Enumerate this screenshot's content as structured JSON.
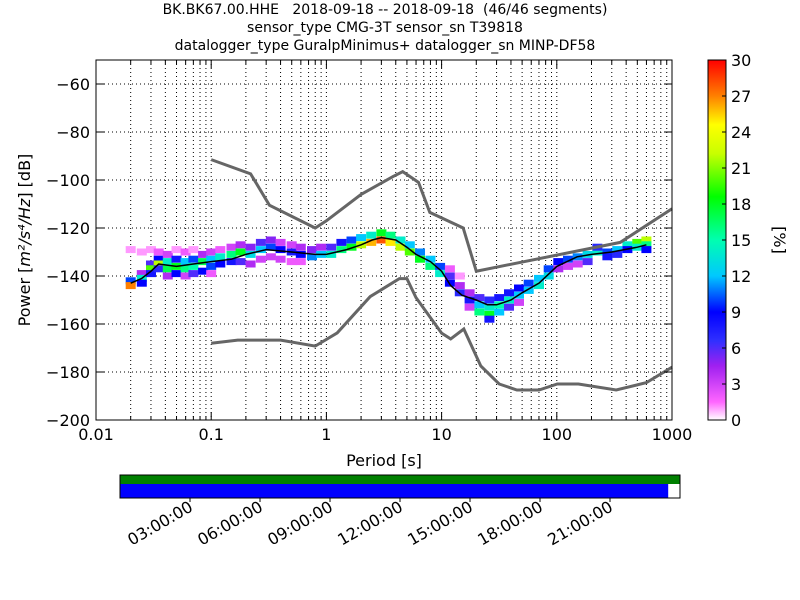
{
  "title_lines": [
    "BK.BK67.00.HHE   2018-09-18 -- 2018-09-18  (46/46 segments)",
    "sensor_type CMG-3T sensor_sn T39818",
    "datalogger_type GuralpMinimus+ datalogger_sn MINP-DF58"
  ],
  "chart_data": {
    "type": "heatmap",
    "title": "BK.BK67.00.HHE   2018-09-18 -- 2018-09-18  (46/46 segments)",
    "xlabel": "Period [s]",
    "ylabel_prefix": "Power [",
    "ylabel_unit": "m²/s⁴/Hz",
    "ylabel_suffix": "] [dB]",
    "x_scale": "log",
    "xlim": [
      0.01,
      1000
    ],
    "ylim": [
      -200,
      -50
    ],
    "x_ticks": [
      0.01,
      0.1,
      1,
      10,
      100,
      1000
    ],
    "x_tick_labels": [
      "0.01",
      "0.1",
      "1",
      "10",
      "100",
      "1000"
    ],
    "y_ticks": [
      -200,
      -180,
      -160,
      -140,
      -120,
      -100,
      -80,
      -60
    ],
    "y_tick_labels": [
      "−200",
      "−180",
      "−160",
      "−140",
      "−120",
      "−100",
      "−80",
      "−60"
    ],
    "grid": true,
    "colorbar": {
      "label": "[%]",
      "range": [
        0,
        30
      ],
      "ticks": [
        0,
        3,
        6,
        9,
        12,
        15,
        18,
        21,
        24,
        27,
        30
      ],
      "tick_labels": [
        "0",
        "3",
        "6",
        "9",
        "12",
        "15",
        "18",
        "21",
        "24",
        "27",
        "30"
      ]
    },
    "mode_line": {
      "period": [
        0.02,
        0.025,
        0.03,
        0.035,
        0.05,
        0.07,
        0.1,
        0.15,
        0.2,
        0.3,
        0.5,
        0.8,
        1,
        1.5,
        2,
        2.5,
        3,
        4,
        5,
        6,
        8,
        10,
        12,
        15,
        20,
        25,
        30,
        40,
        50,
        70,
        100,
        150,
        200,
        300,
        500,
        600
      ],
      "power": [
        -143,
        -141,
        -138,
        -135,
        -136,
        -135,
        -134,
        -133,
        -131,
        -129,
        -130,
        -131,
        -131,
        -129,
        -127,
        -125,
        -124,
        -125,
        -128,
        -131,
        -134,
        -138,
        -144,
        -148,
        -150,
        -152,
        -152,
        -150,
        -147,
        -143,
        -136,
        -132,
        -131,
        -130,
        -128,
        -127
      ]
    },
    "noise_model_high": {
      "period": [
        0.1,
        0.22,
        0.32,
        0.8,
        1,
        2,
        3.8,
        4.6,
        6.3,
        7.9,
        15.4,
        20,
        354.8,
        1000
      ],
      "power": [
        -91.5,
        -97.4,
        -110.5,
        -120,
        -117,
        -106,
        -98.5,
        -96.5,
        -101,
        -113.5,
        -120,
        -138,
        -126,
        -112
      ]
    },
    "noise_model_low": {
      "period": [
        0.1,
        0.17,
        0.4,
        0.8,
        1.24,
        2.4,
        4.3,
        5,
        6,
        10,
        12,
        15.6,
        21.9,
        31.6,
        45,
        70,
        101,
        154,
        328,
        600,
        1000
      ],
      "power": [
        -168,
        -166.7,
        -166.7,
        -169.2,
        -163.7,
        -148.6,
        -141.1,
        -141.1,
        -149,
        -163.8,
        -166.2,
        -162.1,
        -177.5,
        -185,
        -187.5,
        -187.5,
        -185,
        -185,
        -187.5,
        -184.4,
        -178
      ]
    },
    "pdf_cells": [
      {
        "p": 0.02,
        "y": -129,
        "pct": 1
      },
      {
        "p": 0.02,
        "y": -142,
        "pct": 10
      },
      {
        "p": 0.02,
        "y": -144,
        "pct": 27
      },
      {
        "p": 0.025,
        "y": -130,
        "pct": 1
      },
      {
        "p": 0.025,
        "y": -139,
        "pct": 4
      },
      {
        "p": 0.025,
        "y": -141,
        "pct": 14
      },
      {
        "p": 0.025,
        "y": -143,
        "pct": 9
      },
      {
        "p": 0.03,
        "y": -129,
        "pct": 1
      },
      {
        "p": 0.03,
        "y": -135,
        "pct": 6
      },
      {
        "p": 0.03,
        "y": -137,
        "pct": 20
      },
      {
        "p": 0.03,
        "y": -139,
        "pct": 8
      },
      {
        "p": 0.035,
        "y": -130,
        "pct": 2
      },
      {
        "p": 0.035,
        "y": -133,
        "pct": 9
      },
      {
        "p": 0.035,
        "y": -135,
        "pct": 22
      },
      {
        "p": 0.035,
        "y": -137,
        "pct": 7
      },
      {
        "p": 0.042,
        "y": -131,
        "pct": 3
      },
      {
        "p": 0.042,
        "y": -134,
        "pct": 14
      },
      {
        "p": 0.042,
        "y": -137,
        "pct": 17
      },
      {
        "p": 0.042,
        "y": -140,
        "pct": 4
      },
      {
        "p": 0.05,
        "y": -129,
        "pct": 1
      },
      {
        "p": 0.05,
        "y": -133,
        "pct": 8
      },
      {
        "p": 0.05,
        "y": -136,
        "pct": 18
      },
      {
        "p": 0.05,
        "y": -139,
        "pct": 9
      },
      {
        "p": 0.06,
        "y": -130,
        "pct": 2
      },
      {
        "p": 0.06,
        "y": -134,
        "pct": 12
      },
      {
        "p": 0.06,
        "y": -137,
        "pct": 16
      },
      {
        "p": 0.06,
        "y": -140,
        "pct": 3
      },
      {
        "p": 0.07,
        "y": -129,
        "pct": 1
      },
      {
        "p": 0.07,
        "y": -133,
        "pct": 10
      },
      {
        "p": 0.07,
        "y": -136,
        "pct": 15
      },
      {
        "p": 0.07,
        "y": -139,
        "pct": 6
      },
      {
        "p": 0.085,
        "y": -131,
        "pct": 4
      },
      {
        "p": 0.085,
        "y": -134,
        "pct": 17
      },
      {
        "p": 0.085,
        "y": -138,
        "pct": 9
      },
      {
        "p": 0.1,
        "y": -130,
        "pct": 3
      },
      {
        "p": 0.1,
        "y": -133,
        "pct": 12
      },
      {
        "p": 0.1,
        "y": -136,
        "pct": 10
      },
      {
        "p": 0.1,
        "y": -139,
        "pct": 2
      },
      {
        "p": 0.12,
        "y": -129,
        "pct": 2
      },
      {
        "p": 0.12,
        "y": -132,
        "pct": 14
      },
      {
        "p": 0.12,
        "y": -135,
        "pct": 9
      },
      {
        "p": 0.15,
        "y": -128,
        "pct": 3
      },
      {
        "p": 0.15,
        "y": -131,
        "pct": 16
      },
      {
        "p": 0.15,
        "y": -134,
        "pct": 8
      },
      {
        "p": 0.18,
        "y": -127,
        "pct": 4
      },
      {
        "p": 0.18,
        "y": -130,
        "pct": 18
      },
      {
        "p": 0.18,
        "y": -134,
        "pct": 6
      },
      {
        "p": 0.22,
        "y": -128,
        "pct": 5
      },
      {
        "p": 0.22,
        "y": -131,
        "pct": 13
      },
      {
        "p": 0.22,
        "y": -135,
        "pct": 4
      },
      {
        "p": 0.27,
        "y": -126,
        "pct": 6
      },
      {
        "p": 0.27,
        "y": -129,
        "pct": 12
      },
      {
        "p": 0.27,
        "y": -133,
        "pct": 3
      },
      {
        "p": 0.33,
        "y": -125,
        "pct": 5
      },
      {
        "p": 0.33,
        "y": -128,
        "pct": 10
      },
      {
        "p": 0.33,
        "y": -132,
        "pct": 3
      },
      {
        "p": 0.4,
        "y": -126,
        "pct": 3
      },
      {
        "p": 0.4,
        "y": -129,
        "pct": 9
      },
      {
        "p": 0.4,
        "y": -133,
        "pct": 3
      },
      {
        "p": 0.5,
        "y": -127,
        "pct": 3
      },
      {
        "p": 0.5,
        "y": -130,
        "pct": 8
      },
      {
        "p": 0.5,
        "y": -134,
        "pct": 2
      },
      {
        "p": 0.6,
        "y": -128,
        "pct": 4
      },
      {
        "p": 0.6,
        "y": -131,
        "pct": 9
      },
      {
        "p": 0.6,
        "y": -134,
        "pct": 2
      },
      {
        "p": 0.75,
        "y": -129,
        "pct": 5
      },
      {
        "p": 0.75,
        "y": -132,
        "pct": 11
      },
      {
        "p": 0.9,
        "y": -128,
        "pct": 4
      },
      {
        "p": 0.9,
        "y": -131,
        "pct": 12
      },
      {
        "p": 1.1,
        "y": -128,
        "pct": 6
      },
      {
        "p": 1.1,
        "y": -131,
        "pct": 14
      },
      {
        "p": 1.35,
        "y": -126,
        "pct": 8
      },
      {
        "p": 1.35,
        "y": -129,
        "pct": 16
      },
      {
        "p": 1.65,
        "y": -125,
        "pct": 10
      },
      {
        "p": 1.65,
        "y": -128,
        "pct": 18
      },
      {
        "p": 2,
        "y": -124,
        "pct": 12
      },
      {
        "p": 2,
        "y": -127,
        "pct": 22
      },
      {
        "p": 2.45,
        "y": -123,
        "pct": 14
      },
      {
        "p": 2.45,
        "y": -126,
        "pct": 26
      },
      {
        "p": 3,
        "y": -122,
        "pct": 18
      },
      {
        "p": 3,
        "y": -125,
        "pct": 28
      },
      {
        "p": 3.6,
        "y": -123,
        "pct": 16
      },
      {
        "p": 3.6,
        "y": -126,
        "pct": 25
      },
      {
        "p": 4.4,
        "y": -125,
        "pct": 14
      },
      {
        "p": 4.4,
        "y": -128,
        "pct": 22
      },
      {
        "p": 5.3,
        "y": -127,
        "pct": 12
      },
      {
        "p": 5.3,
        "y": -130,
        "pct": 20
      },
      {
        "p": 6.5,
        "y": -130,
        "pct": 11
      },
      {
        "p": 6.5,
        "y": -133,
        "pct": 18
      },
      {
        "p": 8,
        "y": -133,
        "pct": 12
      },
      {
        "p": 8,
        "y": -136,
        "pct": 16
      },
      {
        "p": 9.7,
        "y": -136,
        "pct": 10
      },
      {
        "p": 9.7,
        "y": -139,
        "pct": 14
      },
      {
        "p": 11.8,
        "y": -140,
        "pct": 6
      },
      {
        "p": 11.8,
        "y": -143,
        "pct": 9
      },
      {
        "p": 11.8,
        "y": -137,
        "pct": 2
      },
      {
        "p": 14.4,
        "y": -144,
        "pct": 4
      },
      {
        "p": 14.4,
        "y": -147,
        "pct": 7
      },
      {
        "p": 14.4,
        "y": -140,
        "pct": 1
      },
      {
        "p": 17.5,
        "y": -147,
        "pct": 4
      },
      {
        "p": 17.5,
        "y": -150,
        "pct": 8
      },
      {
        "p": 17.5,
        "y": -153,
        "pct": 3
      },
      {
        "p": 21.3,
        "y": -149,
        "pct": 6
      },
      {
        "p": 21.3,
        "y": -152,
        "pct": 12
      },
      {
        "p": 21.3,
        "y": -155,
        "pct": 16
      },
      {
        "p": 26,
        "y": -150,
        "pct": 7
      },
      {
        "p": 26,
        "y": -153,
        "pct": 14
      },
      {
        "p": 26,
        "y": -156,
        "pct": 18
      },
      {
        "p": 26,
        "y": -158,
        "pct": 8
      },
      {
        "p": 31.6,
        "y": -149,
        "pct": 8
      },
      {
        "p": 31.6,
        "y": -152,
        "pct": 15
      },
      {
        "p": 31.6,
        "y": -155,
        "pct": 12
      },
      {
        "p": 38.5,
        "y": -147,
        "pct": 8
      },
      {
        "p": 38.5,
        "y": -150,
        "pct": 14
      },
      {
        "p": 38.5,
        "y": -153,
        "pct": 6
      },
      {
        "p": 47,
        "y": -145,
        "pct": 9
      },
      {
        "p": 47,
        "y": -148,
        "pct": 12
      },
      {
        "p": 47,
        "y": -151,
        "pct": 3
      },
      {
        "p": 57,
        "y": -143,
        "pct": 10
      },
      {
        "p": 57,
        "y": -146,
        "pct": 12
      },
      {
        "p": 70,
        "y": -141,
        "pct": 12
      },
      {
        "p": 70,
        "y": -144,
        "pct": 14
      },
      {
        "p": 85,
        "y": -137,
        "pct": 10
      },
      {
        "p": 85,
        "y": -140,
        "pct": 13
      },
      {
        "p": 103,
        "y": -134,
        "pct": 9
      },
      {
        "p": 103,
        "y": -137,
        "pct": 4
      },
      {
        "p": 125,
        "y": -133,
        "pct": 10
      },
      {
        "p": 125,
        "y": -136,
        "pct": 3
      },
      {
        "p": 152,
        "y": -132,
        "pct": 11
      },
      {
        "p": 152,
        "y": -135,
        "pct": 3
      },
      {
        "p": 185,
        "y": -131,
        "pct": 13
      },
      {
        "p": 185,
        "y": -134,
        "pct": 6
      },
      {
        "p": 225,
        "y": -130,
        "pct": 14
      },
      {
        "p": 225,
        "y": -128,
        "pct": 7
      },
      {
        "p": 275,
        "y": -130,
        "pct": 10
      },
      {
        "p": 275,
        "y": -132,
        "pct": 8
      },
      {
        "p": 335,
        "y": -129,
        "pct": 12
      },
      {
        "p": 335,
        "y": -131,
        "pct": 7
      },
      {
        "p": 410,
        "y": -127,
        "pct": 14
      },
      {
        "p": 410,
        "y": -129,
        "pct": 9
      },
      {
        "p": 500,
        "y": -126,
        "pct": 20
      },
      {
        "p": 500,
        "y": -128,
        "pct": 14
      },
      {
        "p": 600,
        "y": -125,
        "pct": 22
      },
      {
        "p": 600,
        "y": -127,
        "pct": 16
      },
      {
        "p": 600,
        "y": -129,
        "pct": 9
      }
    ]
  },
  "coverage": {
    "time_tick_labels": [
      "03:00:00",
      "06:00:00",
      "09:00:00",
      "12:00:00",
      "15:00:00",
      "18:00:00",
      "21:00:00"
    ],
    "time_tick_hours": [
      3,
      6,
      9,
      12,
      15,
      18,
      21
    ],
    "span_hours": 24,
    "data_coverage_fraction": 1.0,
    "psd_coverage_fraction": 0.979,
    "data_color": "#008000",
    "psd_color": "#0000ff"
  },
  "colors": {
    "mode_line": "#000000",
    "noise_model": "#666666",
    "grid": "#000000"
  }
}
